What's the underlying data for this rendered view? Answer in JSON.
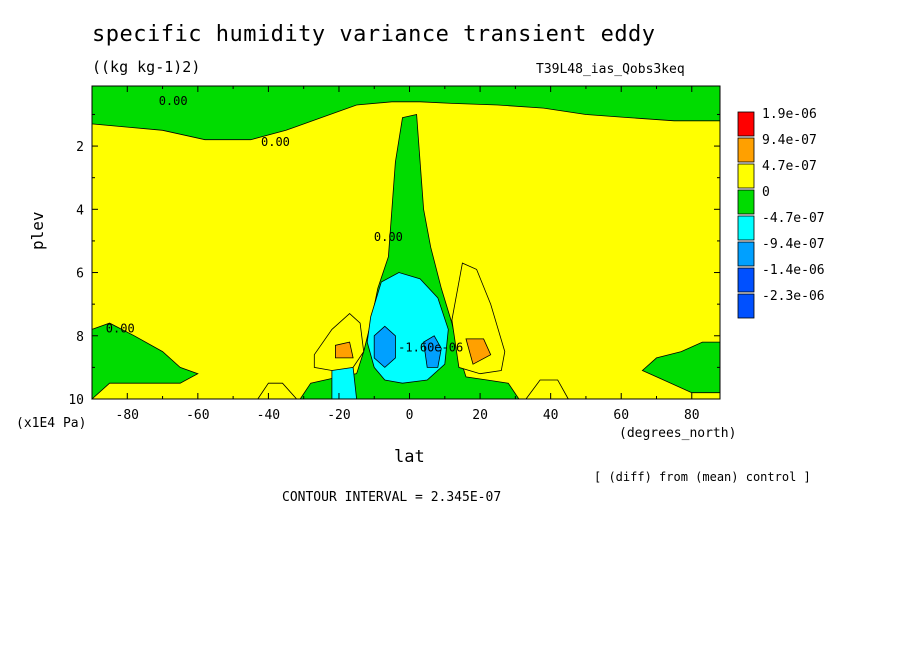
{
  "chart_data": {
    "type": "heatmap",
    "title": "specific humidity variance transient eddy",
    "units": "((kg kg-1)2)",
    "run_name": "T39L48_ias_Qobs3keq",
    "xlabel": "lat",
    "xunits": "(degrees_north)",
    "ylabel": "plev",
    "yunits": "(x1E4 Pa)",
    "note": "[ (diff) from (mean) control ]",
    "contour_interval_text": "CONTOUR INTERVAL = 2.345E-07",
    "xlim": [
      -90,
      88
    ],
    "ylim": [
      10,
      0.1
    ],
    "y_inverted": true,
    "x_ticks": [
      "-80",
      "-60",
      "-40",
      "-20",
      "0",
      "20",
      "40",
      "60",
      "80"
    ],
    "x_tick_values": [
      -80,
      -60,
      -40,
      -20,
      0,
      20,
      40,
      60,
      80
    ],
    "y_ticks": [
      "2",
      "4",
      "6",
      "8",
      "10"
    ],
    "y_tick_values": [
      2,
      4,
      6,
      8,
      10
    ],
    "legend": {
      "position": "right",
      "entries": [
        {
          "label": "1.9e-06",
          "color": "#ff0000"
        },
        {
          "label": "9.4e-07",
          "color": "#ffa000"
        },
        {
          "label": "4.7e-07",
          "color": "#ffff00"
        },
        {
          "label": "0",
          "color": "#00dc00"
        },
        {
          "label": "-4.7e-07",
          "color": "#00ffff"
        },
        {
          "label": "-9.4e-07",
          "color": "#00a0ff"
        },
        {
          "label": "-1.4e-06",
          "color": "#0050ff"
        },
        {
          "label": "-2.3e-06",
          "color": ""
        }
      ]
    },
    "contour_labels": [
      {
        "text": "0.00",
        "lat": -67,
        "plev": 0.7
      },
      {
        "text": "0.00",
        "lat": -38,
        "plev": 2.0
      },
      {
        "text": "0.00",
        "lat": -6,
        "plev": 5.0
      },
      {
        "text": "0.00",
        "lat": -82,
        "plev": 7.9
      },
      {
        "text": "-1.60e-06",
        "lat": 6,
        "plev": 8.5
      }
    ],
    "regions": [
      {
        "name": "top-green-band",
        "level": "0",
        "points": [
          [
            -90,
            0.1
          ],
          [
            88,
            0.1
          ],
          [
            88,
            1.2
          ],
          [
            75,
            1.2
          ],
          [
            62,
            1.1
          ],
          [
            50,
            1.0
          ],
          [
            38,
            0.8
          ],
          [
            25,
            0.7
          ],
          [
            12,
            0.65
          ],
          [
            3,
            0.6
          ],
          [
            -5,
            0.6
          ],
          [
            -15,
            0.7
          ],
          [
            -25,
            1.1
          ],
          [
            -35,
            1.5
          ],
          [
            -45,
            1.8
          ],
          [
            -58,
            1.8
          ],
          [
            -70,
            1.5
          ],
          [
            -80,
            1.4
          ],
          [
            -90,
            1.3
          ]
        ]
      },
      {
        "name": "tropical-green-column",
        "level": "0",
        "points": [
          [
            -2,
            1.1
          ],
          [
            2,
            1.0
          ],
          [
            3,
            2.5
          ],
          [
            4,
            4.0
          ],
          [
            6,
            5.2
          ],
          [
            9,
            6.5
          ],
          [
            12,
            7.6
          ],
          [
            14,
            8.6
          ],
          [
            16,
            9.3
          ],
          [
            22,
            9.4
          ],
          [
            28,
            9.5
          ],
          [
            31,
            10
          ],
          [
            -31,
            10
          ],
          [
            -28,
            9.5
          ],
          [
            -20,
            9.3
          ],
          [
            -15,
            9.2
          ],
          [
            -13,
            8.5
          ],
          [
            -11,
            7.6
          ],
          [
            -9,
            6.5
          ],
          [
            -6,
            5.5
          ],
          [
            -5,
            4.0
          ],
          [
            -4,
            2.5
          ]
        ]
      },
      {
        "name": "cyan-core",
        "level": "-4.7e-07",
        "points": [
          [
            -11,
            7.4
          ],
          [
            -8,
            6.3
          ],
          [
            -3,
            6.0
          ],
          [
            3,
            6.2
          ],
          [
            8,
            6.8
          ],
          [
            11,
            7.8
          ],
          [
            10,
            8.9
          ],
          [
            5,
            9.4
          ],
          [
            -2,
            9.5
          ],
          [
            -7,
            9.4
          ],
          [
            -10,
            9.0
          ],
          [
            -12,
            8.2
          ]
        ]
      },
      {
        "name": "cyan-left-patch",
        "level": "-4.7e-07",
        "points": [
          [
            -22,
            9.0
          ],
          [
            -16,
            9.0
          ],
          [
            -15,
            10
          ],
          [
            -22,
            10
          ]
        ]
      },
      {
        "name": "blue-core-left",
        "level": "-9.4e-07",
        "points": [
          [
            -10,
            8.0
          ],
          [
            -7,
            7.7
          ],
          [
            -4,
            8.0
          ],
          [
            -4,
            8.7
          ],
          [
            -7,
            9.0
          ],
          [
            -10,
            8.7
          ]
        ]
      },
      {
        "name": "blue-core-right",
        "level": "-9.4e-07",
        "points": [
          [
            4,
            8.2
          ],
          [
            7,
            8.0
          ],
          [
            9,
            8.4
          ],
          [
            8,
            9.0
          ],
          [
            5,
            9.0
          ]
        ]
      },
      {
        "name": "orange-lobe-left",
        "level": "4.7e-07",
        "points": [
          [
            -27,
            8.6
          ],
          [
            -22,
            7.8
          ],
          [
            -17,
            7.3
          ],
          [
            -14,
            7.6
          ],
          [
            -13,
            8.5
          ],
          [
            -16,
            9.0
          ],
          [
            -22,
            9.1
          ],
          [
            -27,
            9.0
          ]
        ]
      },
      {
        "name": "red-left",
        "level": "9.4e-07",
        "points": [
          [
            -21,
            8.3
          ],
          [
            -17,
            8.2
          ],
          [
            -16,
            8.7
          ],
          [
            -21,
            8.7
          ]
        ]
      },
      {
        "name": "orange-lobe-right",
        "level": "4.7e-07",
        "points": [
          [
            12,
            7.5
          ],
          [
            15,
            5.7
          ],
          [
            19,
            5.9
          ],
          [
            23,
            7.0
          ],
          [
            27,
            8.5
          ],
          [
            26,
            9.1
          ],
          [
            20,
            9.2
          ],
          [
            14,
            9.0
          ]
        ]
      },
      {
        "name": "red-right",
        "level": "9.4e-07",
        "points": [
          [
            16,
            8.1
          ],
          [
            21,
            8.1
          ],
          [
            23,
            8.6
          ],
          [
            18,
            8.9
          ]
        ]
      },
      {
        "name": "orange-bottom-left",
        "level": "4.7e-07",
        "points": [
          [
            -43,
            10
          ],
          [
            -40,
            9.5
          ],
          [
            -36,
            9.5
          ],
          [
            -32,
            10
          ]
        ]
      },
      {
        "name": "orange-bottom-right",
        "level": "4.7e-07",
        "points": [
          [
            33,
            10
          ],
          [
            37,
            9.4
          ],
          [
            42,
            9.4
          ],
          [
            45,
            10
          ]
        ]
      },
      {
        "name": "green-left-bottom",
        "level": "0",
        "points": [
          [
            -90,
            7.8
          ],
          [
            -85,
            7.6
          ],
          [
            -78,
            8.0
          ],
          [
            -70,
            8.5
          ],
          [
            -65,
            9.0
          ],
          [
            -60,
            9.2
          ],
          [
            -65,
            9.5
          ],
          [
            -75,
            9.5
          ],
          [
            -85,
            9.5
          ],
          [
            -90,
            10
          ]
        ]
      },
      {
        "name": "green-right-bottom",
        "level": "0",
        "points": [
          [
            88,
            9.8
          ],
          [
            80,
            9.8
          ],
          [
            72,
            9.4
          ],
          [
            66,
            9.1
          ],
          [
            70,
            8.7
          ],
          [
            77,
            8.5
          ],
          [
            83,
            8.2
          ],
          [
            88,
            8.2
          ]
        ]
      }
    ]
  }
}
